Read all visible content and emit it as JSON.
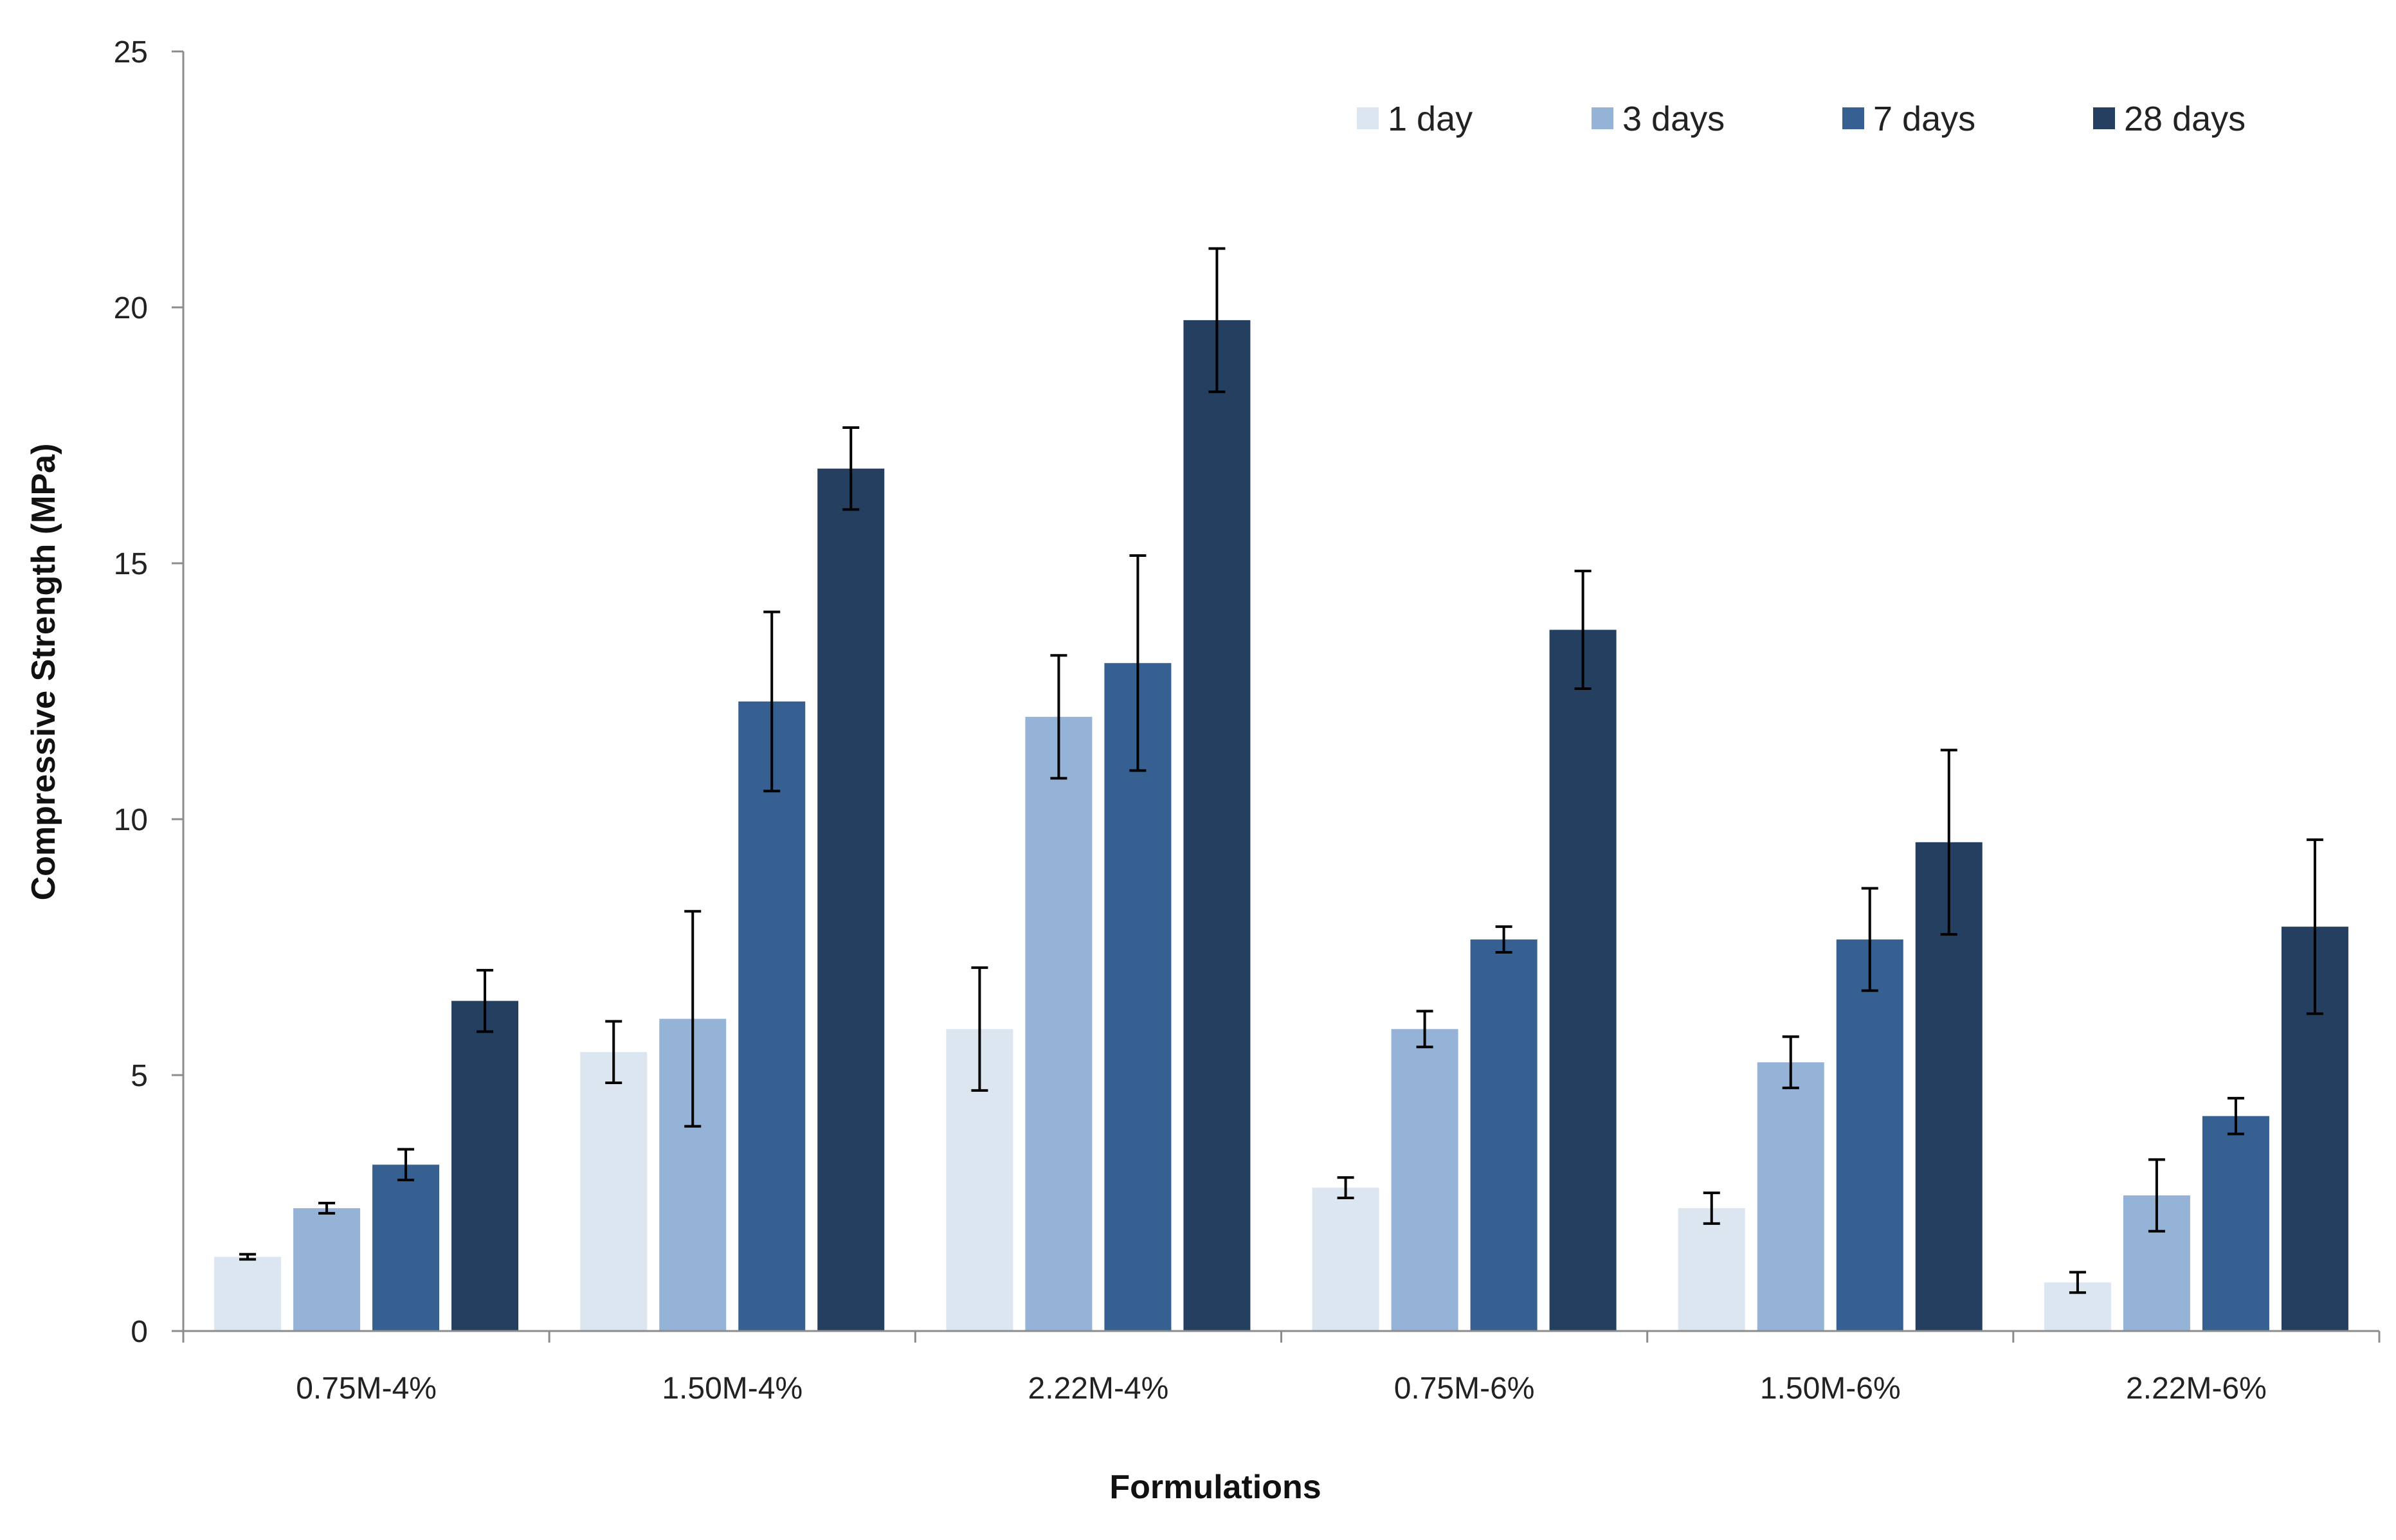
{
  "chart_data": {
    "type": "bar",
    "title": "",
    "xlabel": "Formulations",
    "ylabel": "Compressive Strength (MPa)",
    "ylim": [
      0,
      25
    ],
    "yticks": [
      0,
      5,
      10,
      15,
      20,
      25
    ],
    "grid": false,
    "legend_position": "top-right",
    "categories": [
      "0.75M-4%",
      "1.50M-4%",
      "2.22M-4%",
      "0.75M-6%",
      "1.50M-6%",
      "2.22M-6%"
    ],
    "series": [
      {
        "name": "1 day",
        "color": "#dce6f1",
        "values": [
          1.45,
          5.45,
          5.9,
          2.8,
          2.4,
          0.95
        ],
        "errors": [
          0.05,
          0.6,
          1.2,
          0.2,
          0.3,
          0.2
        ]
      },
      {
        "name": "3 days",
        "color": "#95b3d7",
        "values": [
          2.4,
          6.1,
          12.0,
          5.9,
          5.25,
          2.65
        ],
        "errors": [
          0.1,
          2.1,
          1.2,
          0.35,
          0.5,
          0.7
        ]
      },
      {
        "name": "7 days",
        "color": "#366092",
        "values": [
          3.25,
          12.3,
          13.05,
          7.65,
          7.65,
          4.2
        ],
        "errors": [
          0.3,
          1.75,
          2.1,
          0.25,
          1.0,
          0.35
        ]
      },
      {
        "name": "28 days",
        "color": "#243f60",
        "values": [
          6.45,
          16.85,
          19.75,
          13.7,
          9.55,
          7.9
        ],
        "errors": [
          0.6,
          0.8,
          1.4,
          1.15,
          1.8,
          1.7
        ]
      }
    ]
  }
}
